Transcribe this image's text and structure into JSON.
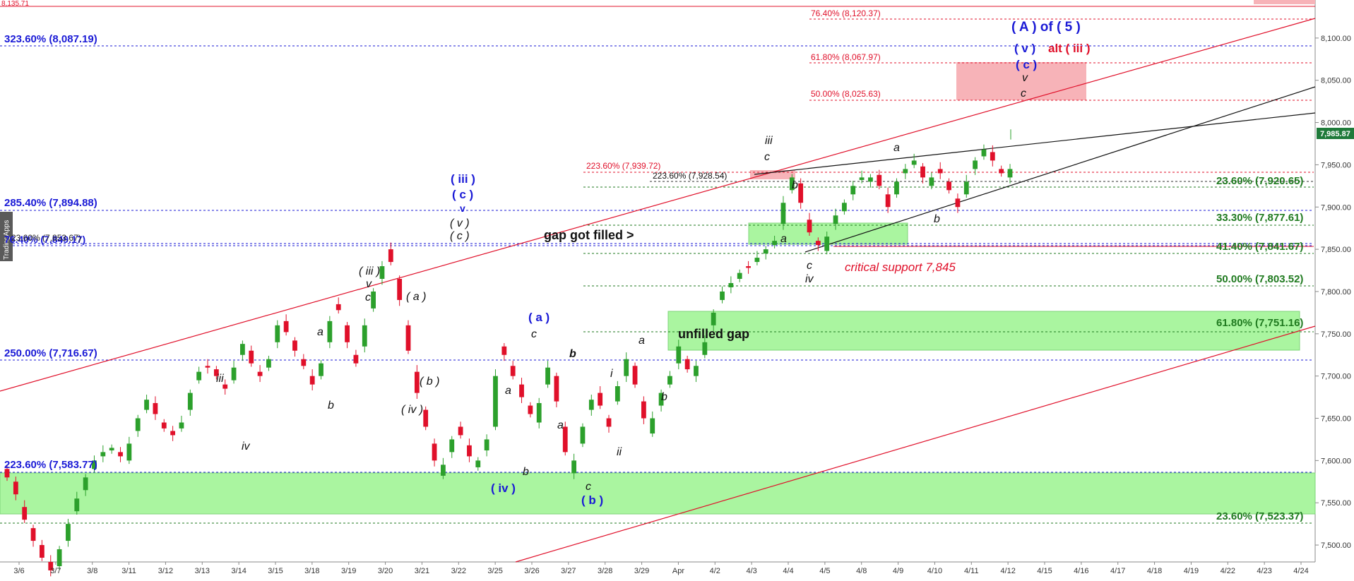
{
  "chart_data": {
    "type": "candlestick",
    "price_axis": {
      "min": 7480,
      "max": 8145,
      "ticks": [
        "8,100.00",
        "8,050.00",
        "8,000.00",
        "7,950.00",
        "7,900.00",
        "7,850.00",
        "7,800.00",
        "7,750.00",
        "7,700.00",
        "7,650.00",
        "7,600.00",
        "7,550.00",
        "7,500.00"
      ],
      "tick_values": [
        8100,
        8050,
        8000,
        7950,
        7900,
        7850,
        7800,
        7750,
        7700,
        7650,
        7600,
        7550,
        7500
      ],
      "last_price_label": "7,985.87",
      "last_price": 7985.87
    },
    "time_axis": {
      "labels": [
        "3/6",
        "3/7",
        "3/8",
        "3/11",
        "3/12",
        "3/13",
        "3/14",
        "3/15",
        "3/18",
        "3/19",
        "3/20",
        "3/21",
        "3/22",
        "3/25",
        "3/26",
        "3/27",
        "3/28",
        "3/29",
        "Apr",
        "4/2",
        "4/3",
        "4/4",
        "4/5",
        "4/8",
        "4/9",
        "4/10",
        "4/11",
        "4/12",
        "4/15",
        "4/16",
        "4/17",
        "4/18",
        "4/19",
        "4/22",
        "4/23",
        "4/24"
      ]
    },
    "top_left_price_label": "8,135.71",
    "watermark": "TradingApps",
    "fib_levels_blue": [
      {
        "label": "323.60% (8,087.19)",
        "value": 8087.19
      },
      {
        "label": "285.40% (7,894.88)",
        "value": 7894.88
      },
      {
        "label": "250.00% (7,716.67)",
        "value": 7716.67
      },
      {
        "label": "223.60% (7,583.77)",
        "value": 7583.77
      }
    ],
    "fib_overlap_labels": [
      "23.60% (7,853.67)",
      "76.40% (7,849.17)"
    ],
    "fib_levels_red": [
      {
        "label": "76.40% (8,120.37)",
        "value": 8120.37
      },
      {
        "label": "61.80% (8,067.97)",
        "value": 8067.97
      },
      {
        "label": "50.00% (8,025.63)",
        "value": 8025.63
      },
      {
        "label": "223.60% (7,939.72)",
        "value": 7939.72
      }
    ],
    "fib_level_black": {
      "label": "223.60% (7,928.54)",
      "value": 7928.54
    },
    "fib_levels_green": [
      {
        "label": "23.60% (7,920.65)",
        "value": 7920.65
      },
      {
        "label": "33.30% (7,877.61)",
        "value": 7877.61
      },
      {
        "label": "41.40% (7,841.67)",
        "value": 7841.67
      },
      {
        "label": "50.00% (7,803.52)",
        "value": 7803.52
      },
      {
        "label": "61.80% (7,751.16)",
        "value": 7751.16
      },
      {
        "label": "23.60% (7,523.37)",
        "value": 7523.37
      }
    ],
    "annotations": {
      "gap_filled": "gap got filled >",
      "unfilled_gap": "unfilled gap",
      "critical_support": "critical support 7,845",
      "top_a_of_5": "( A ) of ( 5 )",
      "top_v": "( v )",
      "top_alt_iii": "alt ( iii )",
      "top_c": "( c )",
      "top_small_v": "v",
      "top_small_c": "c"
    },
    "wave_labels_black": [
      {
        "id": "iii-1",
        "text": "iii"
      },
      {
        "id": "iv-1",
        "text": "iv"
      },
      {
        "id": "b-1",
        "text": "b"
      },
      {
        "id": "a-1",
        "text": "a"
      },
      {
        "id": "iii-paren",
        "text": "( iii )"
      },
      {
        "id": "v-1",
        "text": "v"
      },
      {
        "id": "c-1",
        "text": "c"
      },
      {
        "id": "a-paren",
        "text": "( a )"
      },
      {
        "id": "b-paren",
        "text": "( b )"
      },
      {
        "id": "iv-paren",
        "text": "( iv )"
      },
      {
        "id": "v-paren",
        "text": "( v )"
      },
      {
        "id": "c-paren",
        "text": "( c )"
      },
      {
        "id": "a-2",
        "text": "a"
      },
      {
        "id": "a-3",
        "text": "a"
      },
      {
        "id": "b-2",
        "text": "b"
      },
      {
        "id": "c-2",
        "text": "c"
      },
      {
        "id": "b-3",
        "text": "b"
      },
      {
        "id": "c-3",
        "text": "c"
      },
      {
        "id": "i-1",
        "text": "i"
      },
      {
        "id": "ii-1",
        "text": "ii"
      },
      {
        "id": "a-4",
        "text": "a"
      },
      {
        "id": "b-4",
        "text": "b"
      },
      {
        "id": "iii-2",
        "text": "iii"
      },
      {
        "id": "c-4",
        "text": "c"
      },
      {
        "id": "b-5",
        "text": "b"
      },
      {
        "id": "a-5",
        "text": "a"
      },
      {
        "id": "c-5",
        "text": "c"
      },
      {
        "id": "iv-2",
        "text": "iv"
      },
      {
        "id": "a-6",
        "text": "a"
      },
      {
        "id": "b-6",
        "text": "b"
      }
    ],
    "wave_labels_blue": [
      {
        "id": "iii-blue",
        "text": "( iii )"
      },
      {
        "id": "c-blue",
        "text": "( c )"
      },
      {
        "id": "v-blue",
        "text": "v"
      },
      {
        "id": "a-blue",
        "text": "( a )"
      },
      {
        "id": "iv-blue",
        "text": "( iv )"
      },
      {
        "id": "b-blue",
        "text": "( b )"
      }
    ],
    "colors": {
      "blue_fib": "#1a1ad6",
      "red_fib": "#e0102a",
      "green_fib": "#1f7a1f",
      "green_zone": "#aaf5a0",
      "red_zone": "#f7b3b8",
      "channel": "#e0102a",
      "candle_up": "#2ca02c",
      "candle_down": "#e0102a",
      "last_price_bg": "#1f7a3a"
    },
    "price_path": [
      [
        7590,
        7580
      ],
      [
        7575,
        7560
      ],
      [
        7545,
        7530
      ],
      [
        7520,
        7505
      ],
      [
        7500,
        7485
      ],
      [
        7480,
        7470
      ],
      [
        7475,
        7495
      ],
      [
        7505,
        7525
      ],
      [
        7540,
        7555
      ],
      [
        7565,
        7580
      ],
      [
        7590,
        7600
      ],
      [
        7605,
        7610
      ],
      [
        7612,
        7615
      ],
      [
        7610,
        7605
      ],
      [
        7600,
        7620
      ],
      [
        7635,
        7650
      ],
      [
        7660,
        7672
      ],
      [
        7668,
        7655
      ],
      [
        7645,
        7638
      ],
      [
        7635,
        7630
      ],
      [
        7638,
        7645
      ],
      [
        7660,
        7680
      ],
      [
        7695,
        7705
      ],
      [
        7712,
        7710
      ],
      [
        7708,
        7700
      ],
      [
        7690,
        7685
      ],
      [
        7695,
        7710
      ],
      [
        7725,
        7738
      ],
      [
        7730,
        7715
      ],
      [
        7705,
        7700
      ],
      [
        7710,
        7720
      ],
      [
        7740,
        7760
      ],
      [
        7765,
        7752
      ],
      [
        7742,
        7730
      ],
      [
        7720,
        7712
      ],
      [
        7700,
        7690
      ],
      [
        7700,
        7715
      ],
      [
        7740,
        7765
      ],
      [
        7785,
        7778
      ],
      [
        7760,
        7740
      ],
      [
        7725,
        7715
      ],
      [
        7735,
        7760
      ],
      [
        7780,
        7800
      ],
      [
        7815,
        7830
      ],
      [
        7850,
        7835
      ],
      [
        7815,
        7790
      ],
      [
        7760,
        7730
      ],
      [
        7705,
        7680
      ],
      [
        7660,
        7640
      ],
      [
        7620,
        7600
      ],
      [
        7582,
        7595
      ],
      [
        7610,
        7625
      ],
      [
        7640,
        7630
      ],
      [
        7618,
        7605
      ],
      [
        7592,
        7600
      ],
      [
        7612,
        7625
      ],
      [
        7640,
        7700
      ],
      [
        7735,
        7725
      ],
      [
        7712,
        7700
      ],
      [
        7690,
        7675
      ],
      [
        7665,
        7655
      ],
      [
        7645,
        7668
      ],
      [
        7690,
        7710
      ],
      [
        7700,
        7670
      ],
      [
        7640,
        7610
      ],
      [
        7585,
        7600
      ],
      [
        7620,
        7640
      ],
      [
        7660,
        7672
      ],
      [
        7680,
        7665
      ],
      [
        7650,
        7640
      ],
      [
        7670,
        7688
      ],
      [
        7700,
        7720
      ],
      [
        7712,
        7690
      ],
      [
        7670,
        7650
      ],
      [
        7632,
        7650
      ],
      [
        7665,
        7680
      ],
      [
        7690,
        7700
      ],
      [
        7715,
        7735
      ],
      [
        7720,
        7708
      ],
      [
        7700,
        7712
      ],
      [
        7725,
        7740
      ],
      [
        7760,
        7775
      ],
      [
        7790,
        7800
      ],
      [
        7805,
        7810
      ],
      [
        7815,
        7822
      ],
      [
        7830,
        7828
      ],
      [
        7835,
        7840
      ],
      [
        7845,
        7850
      ],
      [
        7855,
        7860
      ],
      [
        7880,
        7905
      ],
      [
        7920,
        7935
      ],
      [
        7928,
        7905
      ],
      [
        7885,
        7870
      ],
      [
        7860,
        7855
      ],
      [
        7848,
        7865
      ],
      [
        7880,
        7890
      ],
      [
        7895,
        7905
      ],
      [
        7915,
        7925
      ],
      [
        7932,
        7935
      ],
      [
        7930,
        7935
      ],
      [
        7938,
        7925
      ],
      [
        7915,
        7900
      ],
      [
        7915,
        7930
      ],
      [
        7940,
        7945
      ],
      [
        7950,
        7955
      ],
      [
        7948,
        7935
      ],
      [
        7925,
        7935
      ],
      [
        7945,
        7940
      ],
      [
        7930,
        7920
      ],
      [
        7910,
        7900
      ],
      [
        7915,
        7930
      ],
      [
        7945,
        7955
      ],
      [
        7960,
        7968
      ],
      [
        7965,
        7955
      ],
      [
        7945,
        7940
      ],
      [
        7935,
        7945
      ]
    ]
  }
}
